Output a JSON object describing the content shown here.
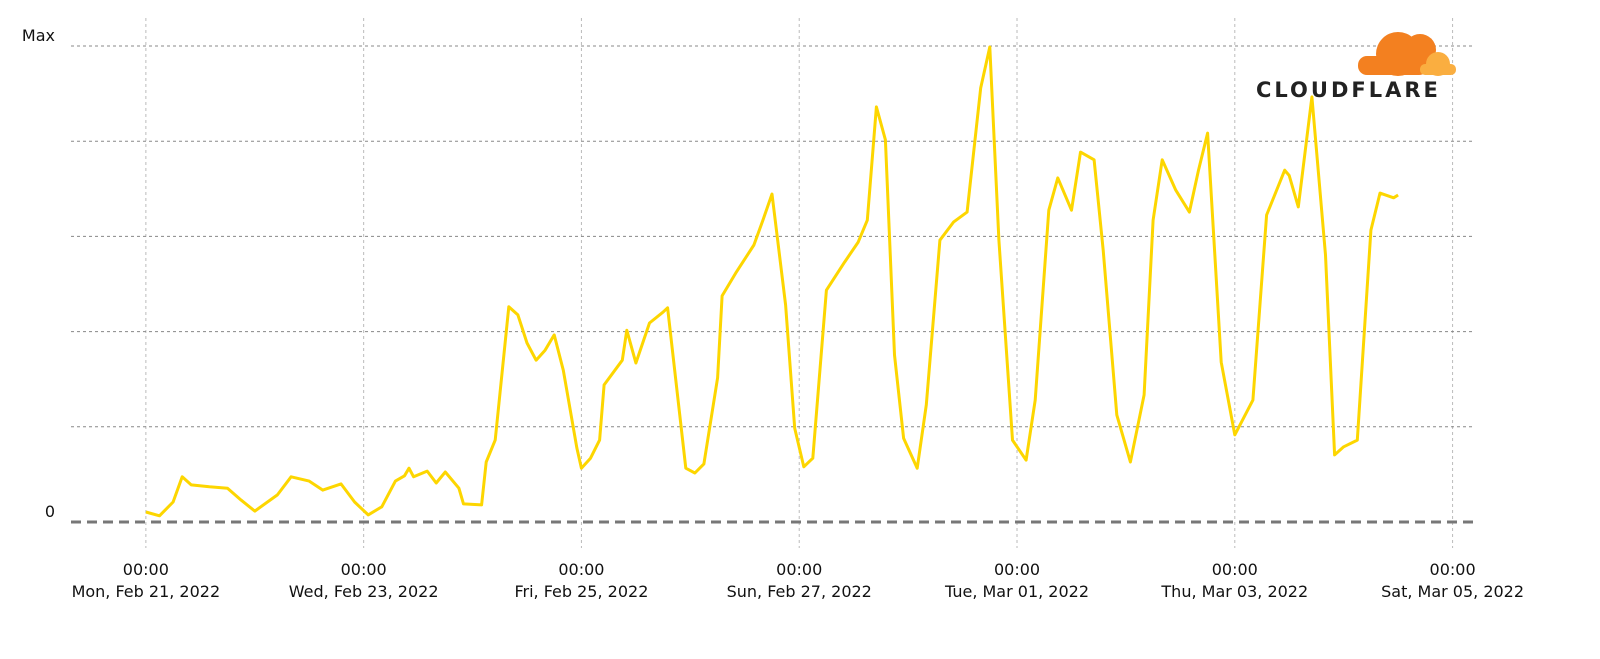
{
  "chart_data": {
    "type": "line",
    "logo": "CLOUDFLARE",
    "xlim": [
      "2022-02-20T07:30",
      "2022-03-05T04:30"
    ],
    "xticks": [
      {
        "value": "2022-02-21T00:00",
        "label": "00:00\nMon, Feb 21, 2022"
      },
      {
        "value": "2022-02-23T00:00",
        "label": "00:00\nWed, Feb 23, 2022"
      },
      {
        "value": "2022-02-25T00:00",
        "label": "00:00\nFri, Feb 25, 2022"
      },
      {
        "value": "2022-02-27T00:00",
        "label": "00:00\nSun, Feb 27, 2022"
      },
      {
        "value": "2022-03-01T00:00",
        "label": "00:00\nTue, Mar 01, 2022"
      },
      {
        "value": "2022-03-03T00:00",
        "label": "00:00\nThu, Mar 03, 2022"
      },
      {
        "value": "2022-03-05T00:00",
        "label": "00:00\nSat, Mar 05, 2022"
      }
    ],
    "ylim": [
      0,
      100
    ],
    "yticks": [
      0,
      {
        "value": 20,
        "label": null
      },
      {
        "value": 40,
        "label": null
      },
      {
        "value": 60,
        "label": null
      },
      {
        "value": 80,
        "label": null
      },
      {
        "value": 100,
        "label": "Max"
      }
    ],
    "grid": true,
    "x": [
      "2022-02-21T00:00",
      "2022-02-21T03:00",
      "2022-02-21T06:00",
      "2022-02-21T08:00",
      "2022-02-21T10:00",
      "2022-02-21T14:00",
      "2022-02-21T18:00",
      "2022-02-21T21:00",
      "2022-02-22T00:00",
      "2022-02-22T05:00",
      "2022-02-22T08:00",
      "2022-02-22T12:00",
      "2022-02-22T15:00",
      "2022-02-22T19:00",
      "2022-02-22T22:00",
      "2022-02-23T01:00",
      "2022-02-23T04:00",
      "2022-02-23T07:00",
      "2022-02-23T09:00",
      "2022-02-23T10:00",
      "2022-02-23T11:00",
      "2022-02-23T14:00",
      "2022-02-23T16:00",
      "2022-02-23T18:00",
      "2022-02-23T21:00",
      "2022-02-23T22:00",
      "2022-02-24T02:00",
      "2022-02-24T03:00",
      "2022-02-24T05:00",
      "2022-02-24T08:00",
      "2022-02-24T10:00",
      "2022-02-24T12:00",
      "2022-02-24T14:00",
      "2022-02-24T16:00",
      "2022-02-24T18:00",
      "2022-02-24T20:00",
      "2022-02-24T23:00",
      "2022-02-25T00:00",
      "2022-02-25T02:00",
      "2022-02-25T04:00",
      "2022-02-25T05:00",
      "2022-02-25T09:00",
      "2022-02-25T10:00",
      "2022-02-25T12:00",
      "2022-02-25T15:00",
      "2022-02-25T18:00",
      "2022-02-25T19:00",
      "2022-02-25T23:00",
      "2022-02-26T01:00",
      "2022-02-26T03:00",
      "2022-02-26T06:00",
      "2022-02-26T07:00",
      "2022-02-26T10:00",
      "2022-02-26T14:00",
      "2022-02-26T16:00",
      "2022-02-26T18:00",
      "2022-02-26T21:00",
      "2022-02-26T23:00",
      "2022-02-27T01:00",
      "2022-02-27T03:00",
      "2022-02-27T06:00",
      "2022-02-27T10:00",
      "2022-02-27T13:00",
      "2022-02-27T15:00",
      "2022-02-27T17:00",
      "2022-02-27T19:00",
      "2022-02-27T21:00",
      "2022-02-27T23:00",
      "2022-02-28T02:00",
      "2022-02-28T04:00",
      "2022-02-28T07:00",
      "2022-02-28T10:00",
      "2022-02-28T13:00",
      "2022-02-28T16:00",
      "2022-02-28T18:00",
      "2022-02-28T20:00",
      "2022-02-28T23:00",
      "2022-03-01T02:00",
      "2022-03-01T04:00",
      "2022-03-01T07:00",
      "2022-03-01T09:00",
      "2022-03-01T12:00",
      "2022-03-01T14:00",
      "2022-03-01T17:00",
      "2022-03-01T19:00",
      "2022-03-01T22:00",
      "2022-03-02T01:00",
      "2022-03-02T04:00",
      "2022-03-02T06:00",
      "2022-03-02T08:00",
      "2022-03-02T11:00",
      "2022-03-02T14:00",
      "2022-03-02T16:00",
      "2022-03-02T18:00",
      "2022-03-02T21:00",
      "2022-03-03T00:00",
      "2022-03-03T04:00",
      "2022-03-03T07:00",
      "2022-03-03T11:00",
      "2022-03-03T12:00",
      "2022-03-03T14:00",
      "2022-03-03T17:00",
      "2022-03-03T20:00",
      "2022-03-03T22:00",
      "2022-03-04T00:00",
      "2022-03-04T03:00",
      "2022-03-04T06:00",
      "2022-03-04T08:00",
      "2022-03-04T11:00",
      "2022-03-04T12:00"
    ],
    "series": [
      {
        "color": "#fdd600",
        "values": [
          2.1,
          1.3,
          4.2,
          9.5,
          7.8,
          7.4,
          7.1,
          4.6,
          2.3,
          5.7,
          9.5,
          8.6,
          6.7,
          8,
          4.2,
          1.5,
          3.2,
          8.6,
          9.7,
          11.3,
          9.5,
          10.7,
          8.2,
          10.5,
          7.1,
          3.8,
          3.6,
          12.6,
          17.2,
          45.2,
          43.5,
          37.6,
          34,
          36.1,
          39.3,
          31.9,
          15.5,
          11.3,
          13.4,
          17.2,
          28.8,
          34,
          40.3,
          33.4,
          41.8,
          44.1,
          45,
          11.3,
          10.3,
          12.2,
          30.3,
          47.5,
          52.3,
          58.2,
          63.4,
          68.9,
          45.6,
          19.7,
          11.6,
          13.4,
          48.7,
          54.6,
          58.8,
          63.4,
          87.2,
          80.3,
          35.1,
          17.6,
          11.3,
          24.6,
          59.2,
          63,
          65.1,
          91.2,
          99.8,
          59.2,
          17.2,
          13,
          25.6,
          65.5,
          72.3,
          65.5,
          77.7,
          76.1,
          57.1,
          22.5,
          12.6,
          26.7,
          63.4,
          76.1,
          69.7,
          65.1,
          73.9,
          81.7,
          33.6,
          18.3,
          25.6,
          64.5,
          73.9,
          72.8,
          66.2,
          89.3,
          56.1,
          14.1,
          15.8,
          17.2,
          61.3,
          69.1,
          68.1,
          68.7
        ]
      }
    ]
  }
}
